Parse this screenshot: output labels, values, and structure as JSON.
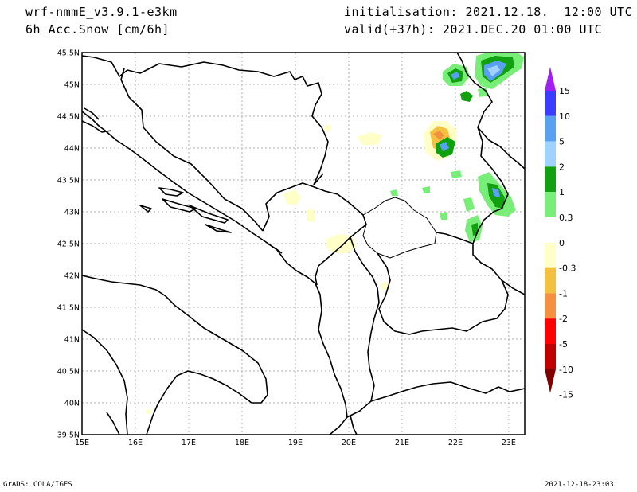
{
  "header": {
    "model": "wrf-nmmE_v3.9.1-e3km",
    "variable": "6h Acc.Snow [cm/6h]",
    "init": "initialisation: 2021.12.18.  12:00 UTC",
    "valid": "valid(+37h): 2021.DEC.20 01:00 UTC"
  },
  "footer": {
    "left": "GrADS: COLA/IGES",
    "right": "2021-12-18-23:03"
  },
  "map": {
    "lon_labels": [
      "15E",
      "16E",
      "17E",
      "18E",
      "19E",
      "20E",
      "21E",
      "22E",
      "23E"
    ],
    "lat_labels": [
      "45.5N",
      "45N",
      "44.5N",
      "44N",
      "43.5N",
      "43N",
      "42.5N",
      "42N",
      "41.5N",
      "41N",
      "40.5N",
      "40N",
      "39.5N"
    ],
    "lon_range": [
      15,
      23.3
    ],
    "lat_range": [
      39.5,
      45.5
    ],
    "grid": true
  },
  "colorbar": {
    "labels": [
      "15",
      "10",
      "5",
      "2",
      "1",
      "0.3",
      "0",
      "-0.3",
      "-1",
      "-2",
      "-5",
      "-10",
      "-15"
    ],
    "colors": [
      "#a020f0",
      "#3c3cff",
      "#5aa0f0",
      "#a0d2ff",
      "#10a010",
      "#78ee78",
      "#ffffff",
      "#ffffc8",
      "#f4c040",
      "#f49040",
      "#ff0000",
      "#c00000",
      "#800000"
    ]
  }
}
